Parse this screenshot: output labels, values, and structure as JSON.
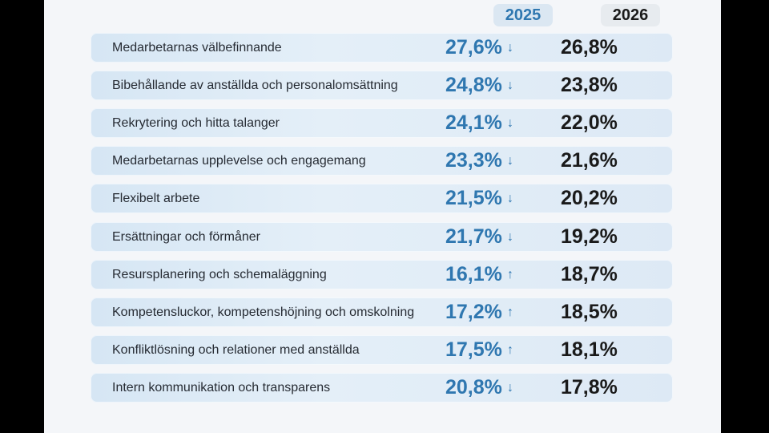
{
  "chart_data": {
    "type": "table",
    "columns": [
      "2025",
      "2026"
    ],
    "colors": {
      "value_2025": "#2f77b0",
      "value_2026": "#1a1a1a",
      "row_bg": "#dde9f5"
    },
    "rows": [
      {
        "label": "Medarbetarnas välbefinnande",
        "v2025": "27,6%",
        "trend": "↓",
        "v2026": "26,8%"
      },
      {
        "label": "Bibehållande av anställda och personalomsättning",
        "v2025": "24,8%",
        "trend": "↓",
        "v2026": "23,8%"
      },
      {
        "label": "Rekrytering och hitta talanger",
        "v2025": "24,1%",
        "trend": "↓",
        "v2026": "22,0%"
      },
      {
        "label": "Medarbetarnas upplevelse och engagemang",
        "v2025": "23,3%",
        "trend": "↓",
        "v2026": "21,6%"
      },
      {
        "label": "Flexibelt arbete",
        "v2025": "21,5%",
        "trend": "↓",
        "v2026": "20,2%"
      },
      {
        "label": "Ersättningar och förmåner",
        "v2025": "21,7%",
        "trend": "↓",
        "v2026": "19,2%"
      },
      {
        "label": "Resursplanering och schemaläggning",
        "v2025": "16,1%",
        "trend": "↑",
        "v2026": "18,7%"
      },
      {
        "label": "Kompetensluckor, kompetenshöjning och omskolning",
        "v2025": "17,2%",
        "trend": "↑",
        "v2026": "18,5%"
      },
      {
        "label": "Konfliktlösning och relationer med anställda",
        "v2025": "17,5%",
        "trend": "↑",
        "v2026": "18,1%"
      },
      {
        "label": "Intern kommunikation och transparens",
        "v2025": "20,8%",
        "trend": "↓",
        "v2026": "17,8%"
      }
    ]
  }
}
